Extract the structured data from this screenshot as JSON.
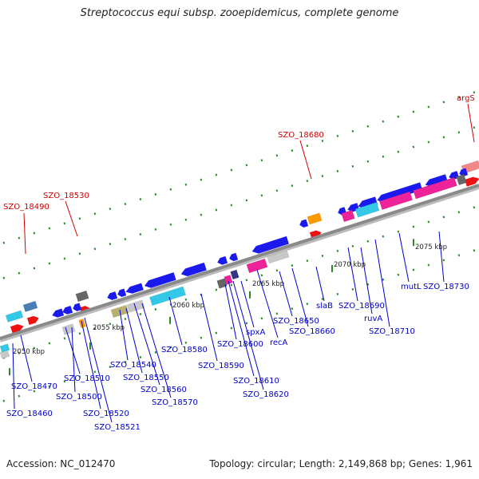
{
  "title": "Streptococcus equi subsp. zooepidemicus, complete genome",
  "footer": {
    "accession_label": "Accession: NC_012470",
    "summary": "Topology: circular; Length: 2,149,868 bp; Genes: 1,961"
  },
  "colors": {
    "backbone": "#8a8a8a",
    "label_blue": "#0000cc",
    "label_red": "#d40000",
    "tick_green": "#2a8a2a",
    "gene_blue": "#1a1aee",
    "gene_cyan": "#33c8e8",
    "gene_red": "#ee1111",
    "gene_orange": "#ff9900",
    "gene_pink": "#ee2299",
    "gene_steel": "#4a7fb5",
    "gene_gray": "#666666",
    "gene_lightgray": "#c8c8c8",
    "gene_olive": "#b8b070",
    "gene_salmon": "#f08888",
    "gene_navy": "#333388"
  },
  "scale": [
    {
      "label": "2050 kbp",
      "kbp": 2050
    },
    {
      "label": "2055 kbp",
      "kbp": 2055
    },
    {
      "label": "2060 kbp",
      "kbp": 2060
    },
    {
      "label": "2065 kbp",
      "kbp": 2065
    },
    {
      "label": "2070 kbp",
      "kbp": 2070
    },
    {
      "label": "2075 kbp",
      "kbp": 2075
    }
  ],
  "gene_labels_red": [
    {
      "name": "SZO_18490"
    },
    {
      "name": "SZO_18530"
    },
    {
      "name": "SZO_18680"
    },
    {
      "name": "argS"
    }
  ],
  "gene_labels_blue": [
    {
      "name": "SZO_18470"
    },
    {
      "name": "SZO_18460"
    },
    {
      "name": "SZO_18510"
    },
    {
      "name": "SZO_18500"
    },
    {
      "name": "SZO_18520"
    },
    {
      "name": "SZO_18521"
    },
    {
      "name": "SZO_18540"
    },
    {
      "name": "SZO_18550"
    },
    {
      "name": "SZO_18560"
    },
    {
      "name": "SZO_18570"
    },
    {
      "name": "SZO_18580"
    },
    {
      "name": "SZO_18590"
    },
    {
      "name": "SZO_18600"
    },
    {
      "name": "SZO_18610"
    },
    {
      "name": "SZO_18620"
    },
    {
      "name": "spxA"
    },
    {
      "name": "recA"
    },
    {
      "name": "SZO_18650"
    },
    {
      "name": "SZO_18660"
    },
    {
      "name": "slaB"
    },
    {
      "name": "SZO_18690"
    },
    {
      "name": "ruvA"
    },
    {
      "name": "SZO_18710"
    },
    {
      "name": "mutL"
    },
    {
      "name": "SZO_18730"
    }
  ]
}
